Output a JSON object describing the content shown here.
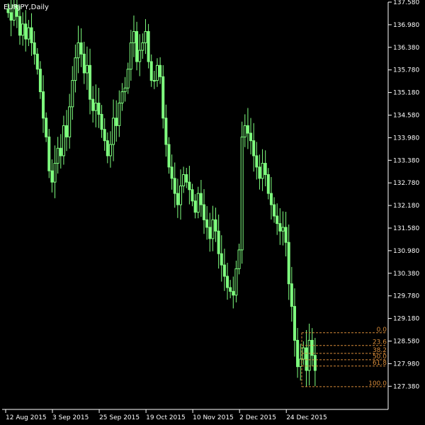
{
  "colors": {
    "background": "#000000",
    "axis": "#ffffff",
    "candle": "#7fff7f",
    "fibonacci": "#d58a39"
  },
  "chart_title": "EURJPY,Daily",
  "chart_data": {
    "type": "candlestick",
    "title": "EURJPY,Daily",
    "xlabel": "",
    "ylabel": "",
    "ylim": [
      127.0,
      137.6
    ],
    "y_ticks": [
      "137.580",
      "136.980",
      "136.380",
      "135.780",
      "135.180",
      "134.580",
      "133.980",
      "133.380",
      "132.780",
      "132.180",
      "131.580",
      "130.980",
      "130.380",
      "129.780",
      "129.180",
      "128.580",
      "127.980",
      "127.380"
    ],
    "x_ticks": [
      {
        "label": "12 Aug 2015",
        "index": 0
      },
      {
        "label": "3 Sep 2015",
        "index": 16
      },
      {
        "label": "25 Sep 2015",
        "index": 32
      },
      {
        "label": "19 Oct 2015",
        "index": 48
      },
      {
        "label": "10 Nov 2015",
        "index": 64
      },
      {
        "label": "2 Dec 2015",
        "index": 80
      },
      {
        "label": "24 Dec 2015",
        "index": 96
      }
    ],
    "closes": [
      137.3,
      137.1,
      137.5,
      137.2,
      136.7,
      137.0,
      136.6,
      136.9,
      136.5,
      136.2,
      135.8,
      135.2,
      134.5,
      134.0,
      133.1,
      132.8,
      133.3,
      133.7,
      133.5,
      134.3,
      134.0,
      134.8,
      135.5,
      136.1,
      136.5,
      136.2,
      135.7,
      135.9,
      135.0,
      134.7,
      134.9,
      134.6,
      134.2,
      133.9,
      133.5,
      133.8,
      134.5,
      134.3,
      134.9,
      135.2,
      135.3,
      135.8,
      136.5,
      136.8,
      136.0,
      136.3,
      136.5,
      136.8,
      136.0,
      135.5,
      135.5,
      135.9,
      135.6,
      134.5,
      133.8,
      133.2,
      132.9,
      132.5,
      132.2,
      132.7,
      133.0,
      132.8,
      132.6,
      132.3,
      132.0,
      132.5,
      132.2,
      131.8,
      131.6,
      131.3,
      131.8,
      131.5,
      130.9,
      130.6,
      130.3,
      130.0,
      129.9,
      129.8,
      130.5,
      131.0,
      134.0,
      134.3,
      134.1,
      133.9,
      133.5,
      133.2,
      132.9,
      133.3,
      133.0,
      132.5,
      132.2,
      131.9,
      131.7,
      131.5,
      131.6,
      131.2,
      130.1,
      129.5,
      128.6,
      127.9,
      128.1,
      128.4,
      127.8,
      128.6,
      128.2,
      127.8
    ]
  },
  "fibonacci": {
    "high": 128.8,
    "low": 127.37,
    "labels": [
      "0.0",
      "23.6",
      "38.2",
      "50.0",
      "61.8",
      "100.0"
    ]
  }
}
